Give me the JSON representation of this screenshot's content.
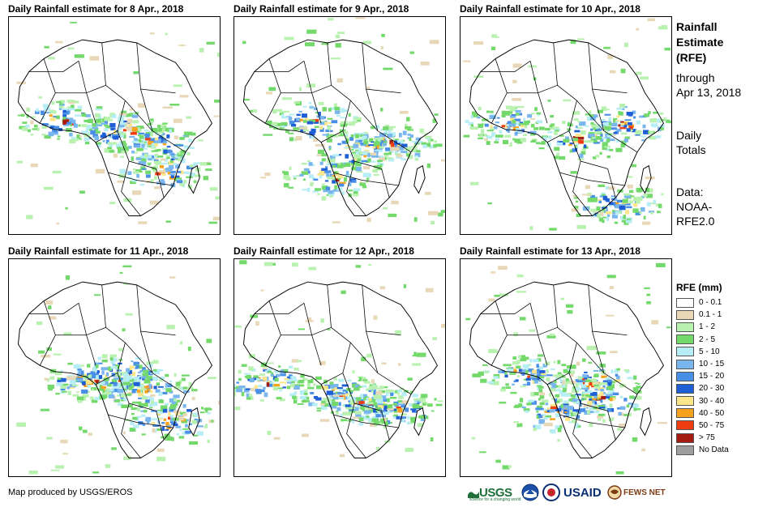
{
  "panels": [
    {
      "title": "Daily Rainfall estimate for 8 Apr., 2018"
    },
    {
      "title": "Daily Rainfall estimate for 9 Apr., 2018"
    },
    {
      "title": "Daily Rainfall estimate for 10 Apr., 2018"
    },
    {
      "title": "Daily Rainfall estimate for 11 Apr., 2018"
    },
    {
      "title": "Daily Rainfall estimate for 12 Apr., 2018"
    },
    {
      "title": "Daily Rainfall estimate for 13 Apr., 2018"
    }
  ],
  "sidebar": {
    "title_lines": [
      "Rainfall",
      "Estimate",
      "(RFE)"
    ],
    "through_lines": [
      "through",
      "Apr 13, 2018"
    ],
    "totals_lines": [
      "Daily",
      "Totals"
    ],
    "data_lines": [
      "Data:",
      "NOAA-",
      "RFE2.0"
    ]
  },
  "legend": {
    "title": "RFE (mm)",
    "items": [
      {
        "label": "0 - 0.1",
        "color": "#ffffff"
      },
      {
        "label": "0.1 - 1",
        "color": "#e8d8b8"
      },
      {
        "label": "1 - 2",
        "color": "#b9f1b0"
      },
      {
        "label": "2 - 5",
        "color": "#73d96b"
      },
      {
        "label": "5 - 10",
        "color": "#b7eef5"
      },
      {
        "label": "10 - 15",
        "color": "#7ab6ee"
      },
      {
        "label": "15 - 20",
        "color": "#4a8fe6"
      },
      {
        "label": "20 - 30",
        "color": "#1f5fd6"
      },
      {
        "label": "30 - 40",
        "color": "#fde58a"
      },
      {
        "label": "40 - 50",
        "color": "#f6a21e"
      },
      {
        "label": "50 - 75",
        "color": "#ef3d12"
      },
      {
        "label": "> 75",
        "color": "#a51c12"
      },
      {
        "label": "No Data",
        "color": "#9e9e9e"
      }
    ]
  },
  "credit": "Map produced by USGS/EROS",
  "logos": {
    "usgs": "USGS",
    "usgs_tagline": "science for a changing world",
    "usaid": "USAID",
    "fews": "FEWS NET"
  }
}
